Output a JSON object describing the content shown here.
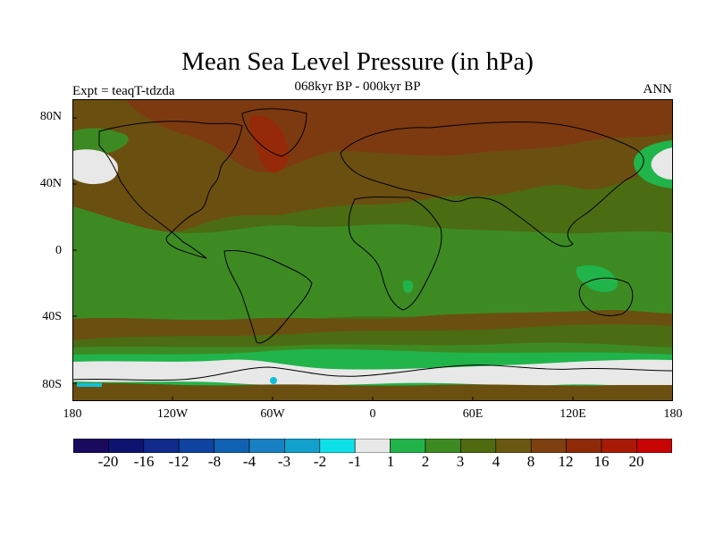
{
  "title": "Mean Sea Level Pressure (in hPa)",
  "subtitle": "068kyr BP - 000kyr BP",
  "experiment_label": "Expt = teaqT-tdzda",
  "season_label": "ANN",
  "lat_ticks": [
    "80N",
    "40N",
    "0",
    "40S",
    "80S"
  ],
  "lon_ticks": [
    "180",
    "120W",
    "60W",
    "0",
    "60E",
    "120E",
    "180"
  ],
  "colorbar": {
    "labels": [
      "-20",
      "-16",
      "-12",
      "-8",
      "-4",
      "-3",
      "-2",
      "-1",
      "1",
      "2",
      "3",
      "4",
      "8",
      "12",
      "16",
      "20"
    ],
    "colors": [
      "#1a0a5e",
      "#0d1470",
      "#0f2a8a",
      "#0f43a0",
      "#1161b2",
      "#1980c4",
      "#12a0cc",
      "#0ee0e8",
      "#e8e8e8",
      "#22b24a",
      "#3e8a22",
      "#4f6a10",
      "#6a5812",
      "#7e4010",
      "#8e2a08",
      "#a81a06",
      "#c80404"
    ]
  },
  "palette": {
    "ocean_base": "#4b6c12",
    "north_high": "#6b4f10",
    "north_max": "#7d3a10",
    "peak": "#962a08",
    "mid_green": "#3d8a23",
    "bright_green": "#20b44b",
    "near_zero": "#e8e8e8",
    "cyan": "#10c0d8"
  }
}
